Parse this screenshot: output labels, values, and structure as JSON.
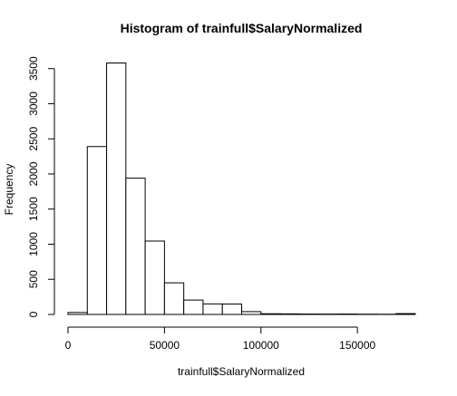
{
  "chart_data": {
    "type": "bar",
    "title": "Histogram of trainfull$SalaryNormalized",
    "xlabel": "trainfull$SalaryNormalized",
    "ylabel": "Frequency",
    "bin_edges": [
      0,
      10000,
      20000,
      30000,
      40000,
      50000,
      60000,
      70000,
      80000,
      90000,
      100000,
      110000,
      120000,
      130000,
      140000,
      150000,
      160000,
      170000,
      180000
    ],
    "values": [
      28,
      2390,
      3580,
      1940,
      1045,
      450,
      205,
      150,
      148,
      40,
      10,
      8,
      6,
      5,
      6,
      4,
      3,
      12
    ],
    "xlim": [
      0,
      180000
    ],
    "ylim": [
      0,
      3700
    ],
    "x_ticks": [
      0,
      50000,
      100000,
      150000
    ],
    "x_tick_labels": [
      "0",
      "50000",
      "100000",
      "150000"
    ],
    "y_ticks": [
      0,
      500,
      1000,
      1500,
      2000,
      2500,
      3000,
      3500
    ],
    "y_tick_labels": [
      "0",
      "500",
      "1000",
      "1500",
      "2000",
      "2500",
      "3000",
      "3500"
    ],
    "grid": false,
    "bar_fill": "#ffffff",
    "bar_stroke": "#000000"
  }
}
